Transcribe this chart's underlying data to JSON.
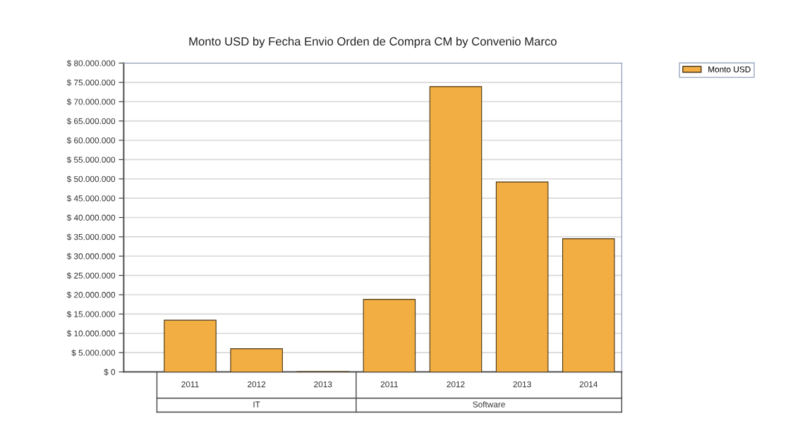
{
  "chart_data": {
    "type": "bar",
    "title": "Monto USD by Fecha Envio Orden de Compra CM by Convenio Marco",
    "categories": [
      "2011",
      "2012",
      "2013",
      "2011",
      "2012",
      "2013",
      "2014"
    ],
    "series": [
      {
        "name": "Monto USD",
        "color": "#f2ae43",
        "values": [
          13400000,
          6000000,
          100000,
          18800000,
          73900000,
          49200000,
          34500000
        ]
      }
    ],
    "annotations": [
      "IT",
      "Software"
    ],
    "ylim": [
      0,
      80000000
    ],
    "yticks": [
      {
        "value": 0,
        "label": "$ 0"
      },
      {
        "value": 5000000,
        "label": "$ 5.000.000"
      },
      {
        "value": 10000000,
        "label": "$ 10.000.000"
      },
      {
        "value": 15000000,
        "label": "$ 15.000.000"
      },
      {
        "value": 20000000,
        "label": "$ 20.000.000"
      },
      {
        "value": 25000000,
        "label": "$ 25.000.000"
      },
      {
        "value": 30000000,
        "label": "$ 30.000.000"
      },
      {
        "value": 35000000,
        "label": "$ 35.000.000"
      },
      {
        "value": 40000000,
        "label": "$ 40.000.000"
      },
      {
        "value": 45000000,
        "label": "$ 45.000.000"
      },
      {
        "value": 50000000,
        "label": "$ 50.000.000"
      },
      {
        "value": 55000000,
        "label": "$ 55.000.000"
      },
      {
        "value": 60000000,
        "label": "$ 60.000.000"
      },
      {
        "value": 65000000,
        "label": "$ 65.000.000"
      },
      {
        "value": 70000000,
        "label": "$ 70.000.000"
      },
      {
        "value": 75000000,
        "label": "$ 75.000.000"
      },
      {
        "value": 80000000,
        "label": "$ 80.000.000"
      }
    ],
    "grid": "y",
    "legend": "top right"
  }
}
